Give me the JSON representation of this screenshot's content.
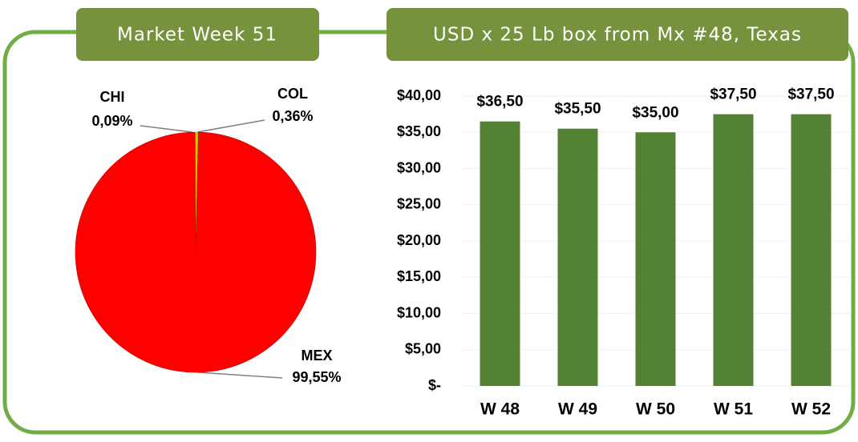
{
  "chart_data": [
    {
      "type": "pie",
      "title": "Market Week 51",
      "categories": [
        "CHI",
        "COL",
        "MEX"
      ],
      "values": [
        0.09,
        0.36,
        99.55
      ],
      "value_labels": [
        "0,09%",
        "0,36%",
        "99,55%"
      ],
      "colors": [
        "#9bbb59",
        "#c8c800",
        "#ff0000"
      ]
    },
    {
      "type": "bar",
      "title": "USD x 25 Lb box from Mx #48, Texas",
      "categories": [
        "W 48",
        "W 49",
        "W 50",
        "W 51",
        "W 52"
      ],
      "values": [
        36.5,
        35.5,
        35,
        37.5,
        37.5
      ],
      "value_labels": [
        "$36,50",
        "$35,50",
        "$35,00",
        "$37,50",
        "$37,50"
      ],
      "color": "#548235",
      "ylim": [
        0,
        40
      ],
      "yticks": [
        {
          "value": 0,
          "label": "$-"
        },
        {
          "value": 5,
          "label": "$5,00"
        },
        {
          "value": 10,
          "label": "$10,00"
        },
        {
          "value": 15,
          "label": "$15,00"
        },
        {
          "value": 20,
          "label": "$20,00"
        },
        {
          "value": 25,
          "label": "$25,00"
        },
        {
          "value": 30,
          "label": "$30,00"
        },
        {
          "value": 35,
          "label": "$35,00"
        },
        {
          "value": 40,
          "label": "$40,00"
        }
      ],
      "grid": true
    }
  ]
}
